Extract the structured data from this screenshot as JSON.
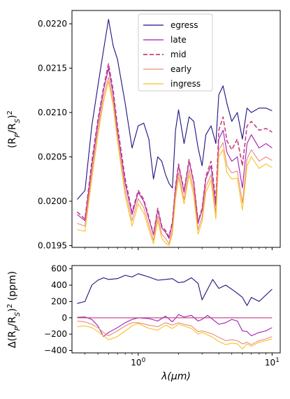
{
  "chart_data": [
    {
      "type": "line",
      "ylabel": "(R_P/R_S)^2",
      "xlabel": "",
      "xscale": "log",
      "xlim": [
        0.32,
        11.5
      ],
      "ylim": [
        0.01948,
        0.02215
      ],
      "x_ticks": [
        {
          "value": 1,
          "label": ""
        },
        {
          "value": 10,
          "label": ""
        }
      ],
      "y_ticks": [
        {
          "value": 0.0195,
          "label": "0.0195"
        },
        {
          "value": 0.02,
          "label": "0.0200"
        },
        {
          "value": 0.0205,
          "label": "0.0205"
        },
        {
          "value": 0.021,
          "label": "0.0210"
        },
        {
          "value": 0.0215,
          "label": "0.0215"
        },
        {
          "value": 0.022,
          "label": "0.0220"
        }
      ],
      "grid": false,
      "legend_position": "top-center",
      "series": [
        {
          "name": "egress",
          "color": "#1a1080",
          "dash": false,
          "x": [
            0.35,
            0.4,
            0.45,
            0.5,
            0.55,
            0.6,
            0.65,
            0.7,
            0.8,
            0.9,
            1.0,
            1.1,
            1.2,
            1.3,
            1.4,
            1.5,
            1.6,
            1.7,
            1.8,
            1.9,
            2.0,
            2.2,
            2.4,
            2.6,
            2.8,
            3.0,
            3.2,
            3.5,
            3.8,
            4.0,
            4.3,
            4.6,
            5.0,
            5.5,
            6.0,
            6.5,
            7.0,
            8.0,
            9.0,
            10.0
          ],
          "y": [
            0.02002,
            0.02012,
            0.02085,
            0.0213,
            0.0217,
            0.02205,
            0.02175,
            0.0216,
            0.0211,
            0.0206,
            0.02085,
            0.02088,
            0.0207,
            0.02025,
            0.0205,
            0.02045,
            0.0203,
            0.0202,
            0.02015,
            0.0208,
            0.02103,
            0.02065,
            0.02095,
            0.0209,
            0.0206,
            0.0204,
            0.02075,
            0.02085,
            0.02065,
            0.0212,
            0.0213,
            0.0211,
            0.0209,
            0.021,
            0.0207,
            0.02105,
            0.021,
            0.02105,
            0.02105,
            0.02102
          ]
        },
        {
          "name": "late",
          "color": "#9b1fb0",
          "dash": false,
          "x": [
            0.35,
            0.4,
            0.45,
            0.5,
            0.55,
            0.6,
            0.65,
            0.7,
            0.8,
            0.9,
            1.0,
            1.1,
            1.2,
            1.3,
            1.4,
            1.5,
            1.6,
            1.7,
            1.8,
            1.9,
            2.0,
            2.2,
            2.4,
            2.6,
            2.8,
            3.0,
            3.2,
            3.5,
            3.8,
            4.0,
            4.3,
            4.6,
            5.0,
            5.5,
            6.0,
            6.5,
            7.0,
            8.0,
            9.0,
            10.0
          ],
          "y": [
            0.01985,
            0.01978,
            0.0204,
            0.02088,
            0.02125,
            0.0215,
            0.0212,
            0.0208,
            0.0202,
            0.01985,
            0.0201,
            0.02,
            0.0198,
            0.01962,
            0.0199,
            0.0197,
            0.01965,
            0.01958,
            0.01975,
            0.02015,
            0.0204,
            0.0201,
            0.02045,
            0.0202,
            0.01975,
            0.0199,
            0.02025,
            0.0204,
            0.01995,
            0.0207,
            0.0208,
            0.02055,
            0.02045,
            0.0205,
            0.02015,
            0.02065,
            0.02075,
            0.0206,
            0.02065,
            0.0206
          ]
        },
        {
          "name": "mid",
          "color": "#c83e7d",
          "dash": true,
          "x": [
            0.35,
            0.4,
            0.45,
            0.5,
            0.55,
            0.6,
            0.65,
            0.7,
            0.8,
            0.9,
            1.0,
            1.1,
            1.2,
            1.3,
            1.4,
            1.5,
            1.6,
            1.7,
            1.8,
            1.9,
            2.0,
            2.2,
            2.4,
            2.6,
            2.8,
            3.0,
            3.2,
            3.5,
            3.8,
            4.0,
            4.3,
            4.6,
            5.0,
            5.5,
            6.0,
            6.5,
            7.0,
            8.0,
            9.0,
            10.0
          ],
          "y": [
            0.01988,
            0.0198,
            0.02045,
            0.02092,
            0.02128,
            0.02155,
            0.02125,
            0.02085,
            0.02025,
            0.01988,
            0.02012,
            0.02002,
            0.01982,
            0.01963,
            0.01992,
            0.01972,
            0.01967,
            0.0196,
            0.01977,
            0.02017,
            0.02042,
            0.02012,
            0.02047,
            0.02022,
            0.01977,
            0.01992,
            0.02028,
            0.02045,
            0.02,
            0.0208,
            0.02095,
            0.02068,
            0.02058,
            0.0207,
            0.0204,
            0.02085,
            0.0209,
            0.0208,
            0.02082,
            0.02078
          ]
        },
        {
          "name": "early",
          "color": "#ef8a7a",
          "dash": false,
          "x": [
            0.35,
            0.4,
            0.45,
            0.5,
            0.55,
            0.6,
            0.65,
            0.7,
            0.8,
            0.9,
            1.0,
            1.1,
            1.2,
            1.3,
            1.4,
            1.5,
            1.6,
            1.7,
            1.8,
            1.9,
            2.0,
            2.2,
            2.4,
            2.6,
            2.8,
            3.0,
            3.2,
            3.5,
            3.8,
            4.0,
            4.3,
            4.6,
            5.0,
            5.5,
            6.0,
            6.5,
            7.0,
            8.0,
            9.0,
            10.0
          ],
          "y": [
            0.01975,
            0.01972,
            0.02032,
            0.0208,
            0.02118,
            0.0214,
            0.02112,
            0.02072,
            0.02012,
            0.01978,
            0.02003,
            0.01993,
            0.01973,
            0.01956,
            0.01983,
            0.01963,
            0.01958,
            0.01952,
            0.01968,
            0.02008,
            0.02032,
            0.02002,
            0.02036,
            0.02012,
            0.01968,
            0.01982,
            0.02016,
            0.0203,
            0.01987,
            0.02058,
            0.02066,
            0.0204,
            0.02032,
            0.02034,
            0.01998,
            0.02048,
            0.02058,
            0.02045,
            0.0205,
            0.02046
          ]
        },
        {
          "name": "ingress",
          "color": "#f6c21c",
          "dash": false,
          "x": [
            0.35,
            0.4,
            0.45,
            0.5,
            0.55,
            0.6,
            0.65,
            0.7,
            0.8,
            0.9,
            1.0,
            1.1,
            1.2,
            1.3,
            1.4,
            1.5,
            1.6,
            1.7,
            1.8,
            1.9,
            2.0,
            2.2,
            2.4,
            2.6,
            2.8,
            3.0,
            3.2,
            3.5,
            3.8,
            4.0,
            4.3,
            4.6,
            5.0,
            5.5,
            6.0,
            6.5,
            7.0,
            8.0,
            9.0,
            10.0
          ],
          "y": [
            0.01968,
            0.01966,
            0.02025,
            0.02075,
            0.02112,
            0.02135,
            0.02108,
            0.02068,
            0.02006,
            0.01972,
            0.01997,
            0.01987,
            0.01968,
            0.01952,
            0.01978,
            0.01958,
            0.01953,
            0.0195,
            0.01963,
            0.02003,
            0.02027,
            0.01997,
            0.0203,
            0.02006,
            0.01963,
            0.01977,
            0.0201,
            0.02024,
            0.0198,
            0.0205,
            0.02058,
            0.02032,
            0.02025,
            0.02026,
            0.0199,
            0.0204,
            0.0205,
            0.02037,
            0.02042,
            0.02038
          ]
        }
      ]
    },
    {
      "type": "line",
      "ylabel": "Δ(R_P/R_S)^2 (ppm)",
      "xlabel": "λ(μm)",
      "xscale": "log",
      "xlim": [
        0.32,
        11.5
      ],
      "ylim": [
        -430,
        640
      ],
      "x_ticks": [
        {
          "value": 1,
          "label": "10^0"
        },
        {
          "value": 10,
          "label": "10^1"
        }
      ],
      "y_ticks": [
        {
          "value": -400,
          "label": "−400"
        },
        {
          "value": -200,
          "label": "−200"
        },
        {
          "value": 0,
          "label": "0"
        },
        {
          "value": 200,
          "label": "200"
        },
        {
          "value": 400,
          "label": "400"
        },
        {
          "value": 600,
          "label": "600"
        }
      ],
      "grid": false,
      "series": [
        {
          "name": "egress",
          "color": "#1a1080",
          "x": [
            0.35,
            0.4,
            0.45,
            0.5,
            0.55,
            0.6,
            0.7,
            0.8,
            0.9,
            1.0,
            1.2,
            1.4,
            1.6,
            1.8,
            2.0,
            2.2,
            2.5,
            2.8,
            3.0,
            3.3,
            3.6,
            4.0,
            4.5,
            5.0,
            5.5,
            6.0,
            6.5,
            7.0,
            8.0,
            9.0,
            10.0
          ],
          "y": [
            175,
            200,
            400,
            460,
            490,
            470,
            480,
            520,
            500,
            540,
            500,
            460,
            470,
            480,
            430,
            440,
            490,
            420,
            220,
            350,
            470,
            360,
            400,
            350,
            300,
            250,
            150,
            250,
            200,
            280,
            350
          ]
        },
        {
          "name": "late",
          "color": "#9b1fb0",
          "x": [
            0.35,
            0.4,
            0.45,
            0.5,
            0.55,
            0.6,
            0.7,
            0.8,
            0.9,
            1.0,
            1.2,
            1.4,
            1.6,
            1.8,
            2.0,
            2.2,
            2.5,
            2.8,
            3.0,
            3.3,
            3.6,
            4.0,
            4.5,
            5.0,
            5.5,
            6.0,
            6.5,
            7.0,
            8.0,
            9.0,
            10.0
          ],
          "y": [
            5,
            10,
            -20,
            -100,
            -230,
            -180,
            -120,
            -60,
            -20,
            0,
            -10,
            -40,
            20,
            -50,
            40,
            10,
            30,
            -40,
            -20,
            30,
            -20,
            -80,
            -60,
            -20,
            -40,
            -160,
            -170,
            -220,
            -180,
            -160,
            -120
          ]
        },
        {
          "name": "mid",
          "color": "#c83e7d",
          "x": [
            0.35,
            10.0
          ],
          "y": [
            0,
            0
          ]
        },
        {
          "name": "early",
          "color": "#ef8a7a",
          "x": [
            0.35,
            0.4,
            0.45,
            0.5,
            0.55,
            0.6,
            0.7,
            0.8,
            0.9,
            1.0,
            1.2,
            1.4,
            1.6,
            1.8,
            2.0,
            2.2,
            2.5,
            2.8,
            3.0,
            3.3,
            3.6,
            4.0,
            4.5,
            5.0,
            5.5,
            6.0,
            6.5,
            7.0,
            8.0,
            9.0,
            10.0
          ],
          "y": [
            -40,
            -50,
            -80,
            -120,
            -180,
            -220,
            -160,
            -100,
            -60,
            -60,
            -90,
            -110,
            -60,
            -90,
            -60,
            -80,
            -100,
            -170,
            -160,
            -180,
            -200,
            -240,
            -280,
            -270,
            -280,
            -320,
            -300,
            -330,
            -280,
            -260,
            -230
          ]
        },
        {
          "name": "ingress",
          "color": "#f6c21c",
          "x": [
            0.35,
            0.4,
            0.45,
            0.5,
            0.55,
            0.6,
            0.7,
            0.8,
            0.9,
            1.0,
            1.2,
            1.4,
            1.6,
            1.8,
            2.0,
            2.2,
            2.5,
            2.8,
            3.0,
            3.3,
            3.6,
            4.0,
            4.5,
            5.0,
            5.5,
            6.0,
            6.5,
            7.0,
            8.0,
            9.0,
            10.0
          ],
          "y": [
            -110,
            -100,
            -120,
            -170,
            -220,
            -270,
            -230,
            -160,
            -100,
            -70,
            -130,
            -150,
            -90,
            -130,
            -80,
            -100,
            -130,
            -200,
            -180,
            -210,
            -240,
            -290,
            -330,
            -310,
            -320,
            -380,
            -320,
            -350,
            -300,
            -280,
            -260
          ]
        }
      ]
    }
  ]
}
